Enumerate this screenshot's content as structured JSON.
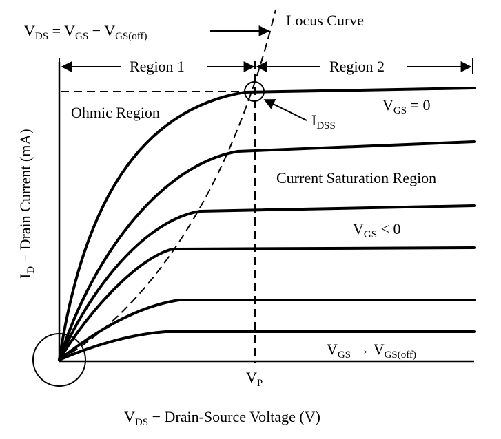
{
  "equation": {
    "v": "V",
    "ds": "DS",
    "eq": " = ",
    "gs": "GS",
    "minus": " − ",
    "gs_off": "GS(off)"
  },
  "locus_label": "Locus Curve",
  "region1_label": "Region 1",
  "region2_label": "Region 2",
  "ohmic_label": "Ohmic Region",
  "idss_label": {
    "i": "I",
    "sub": "DSS"
  },
  "vgs_zero_label": {
    "v": "V",
    "sub": "GS",
    "rest": " = 0"
  },
  "saturation_label": "Current Saturation Region",
  "vgs_neg_label": {
    "v": "V",
    "sub": "GS",
    "rest": " < 0"
  },
  "vgs_off_label": {
    "v": "V",
    "sub": "GS",
    "arrow": " → ",
    "v2": "V",
    "sub2": "GS(off)"
  },
  "vp_label": {
    "v": "V",
    "sub": "P"
  },
  "x_axis_label": {
    "v": "V",
    "sub": "DS",
    "rest": " − Drain-Source Voltage (V)"
  },
  "y_axis_label": {
    "i": "I",
    "sub": "D",
    "rest": " − Drain Current (mA)"
  },
  "icons": [
    "origin-circle-icon",
    "idss-circle-icon",
    "dimension-arrow-icon"
  ]
}
